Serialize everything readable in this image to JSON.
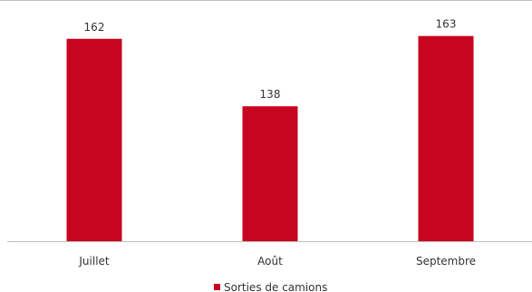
{
  "chart_data": {
    "type": "bar",
    "categories": [
      "Juillet",
      "Août",
      "Septembre"
    ],
    "series": [
      {
        "name": "Sorties de camions",
        "values": [
          162,
          138,
          163
        ],
        "color": "#c8051e"
      }
    ],
    "ylim": [
      90,
      170
    ],
    "grid": false,
    "data_labels": true,
    "legend_position": "bottom",
    "colors": {
      "bar": "#c8051e",
      "axis": "#bfbfbf",
      "text": "#333333"
    }
  }
}
